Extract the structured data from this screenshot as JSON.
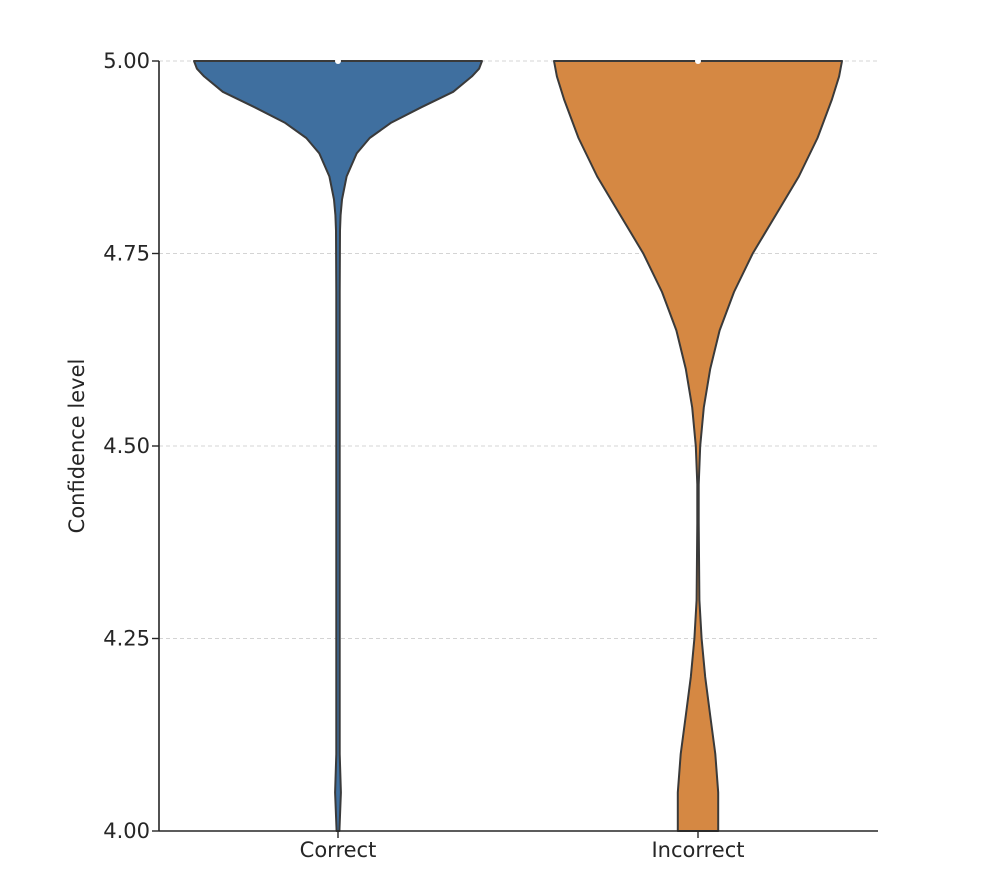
{
  "chart_data": {
    "type": "violin",
    "ylabel": "Confidence level",
    "xlabel": "",
    "ylim": [
      4.0,
      5.0
    ],
    "yticks": [
      4.0,
      4.25,
      4.5,
      4.75,
      5.0
    ],
    "ytick_labels": [
      "4.00",
      "4.25",
      "4.50",
      "4.75",
      "5.00"
    ],
    "categories": [
      "Correct",
      "Incorrect"
    ],
    "grid": "horizontal dashed",
    "series": [
      {
        "category": "Correct",
        "color": "#3f6f9f",
        "median": 5.0,
        "density_profile": [
          [
            4.0,
            0.01
          ],
          [
            4.05,
            0.02
          ],
          [
            4.1,
            0.012
          ],
          [
            4.2,
            0.012
          ],
          [
            4.4,
            0.012
          ],
          [
            4.6,
            0.012
          ],
          [
            4.7,
            0.012
          ],
          [
            4.78,
            0.014
          ],
          [
            4.8,
            0.018
          ],
          [
            4.82,
            0.028
          ],
          [
            4.85,
            0.06
          ],
          [
            4.88,
            0.13
          ],
          [
            4.9,
            0.22
          ],
          [
            4.92,
            0.37
          ],
          [
            4.94,
            0.58
          ],
          [
            4.96,
            0.8
          ],
          [
            4.98,
            0.93
          ],
          [
            4.99,
            0.98
          ],
          [
            5.0,
            1.0
          ]
        ]
      },
      {
        "category": "Incorrect",
        "color": "#d58843",
        "median": 5.0,
        "density_profile": [
          [
            4.0,
            0.14
          ],
          [
            4.05,
            0.14
          ],
          [
            4.1,
            0.12
          ],
          [
            4.15,
            0.085
          ],
          [
            4.2,
            0.05
          ],
          [
            4.25,
            0.025
          ],
          [
            4.3,
            0.01
          ],
          [
            4.4,
            0.005
          ],
          [
            4.45,
            0.005
          ],
          [
            4.5,
            0.015
          ],
          [
            4.55,
            0.04
          ],
          [
            4.6,
            0.085
          ],
          [
            4.65,
            0.15
          ],
          [
            4.7,
            0.25
          ],
          [
            4.75,
            0.38
          ],
          [
            4.8,
            0.54
          ],
          [
            4.85,
            0.7
          ],
          [
            4.9,
            0.83
          ],
          [
            4.95,
            0.93
          ],
          [
            4.98,
            0.98
          ],
          [
            5.0,
            1.0
          ]
        ]
      }
    ]
  }
}
